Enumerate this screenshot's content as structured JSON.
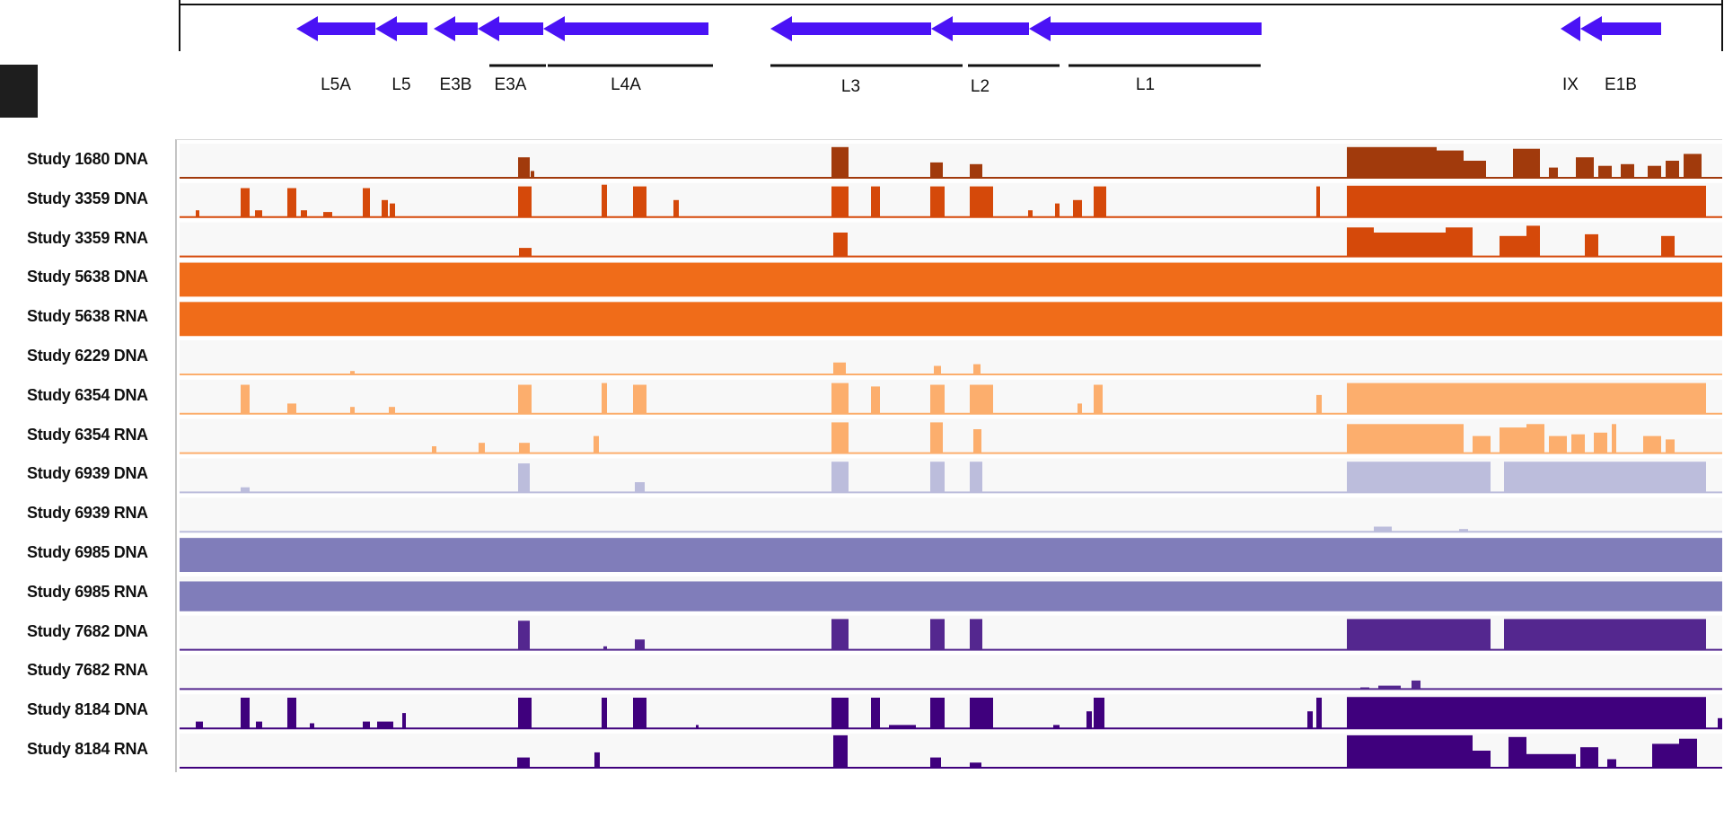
{
  "gene_track": {
    "genes": [
      {
        "name": "L5A",
        "start": 330,
        "end": 418
      },
      {
        "name": "L5",
        "start": 418,
        "end": 476
      },
      {
        "name": "E3B",
        "start": 483,
        "end": 532
      },
      {
        "name": "E3A",
        "start": 532,
        "end": 605
      },
      {
        "name": "L4A",
        "start": 605,
        "end": 789
      },
      {
        "name": "L3",
        "start": 858,
        "end": 1037
      },
      {
        "name": "L2",
        "start": 1037,
        "end": 1146
      },
      {
        "name": "L1",
        "start": 1146,
        "end": 1405
      },
      {
        "name": "IX",
        "start": 1738,
        "end": 1760
      },
      {
        "name": "E1B",
        "start": 1760,
        "end": 1850
      }
    ],
    "regions": [
      {
        "start": 545,
        "end": 608
      },
      {
        "start": 610,
        "end": 794
      },
      {
        "start": 858,
        "end": 1072
      },
      {
        "start": 1078,
        "end": 1180
      },
      {
        "start": 1190,
        "end": 1404
      }
    ],
    "color": "#4a12f5"
  },
  "chart_data": {
    "type": "area",
    "x_range": [
      200,
      1918
    ],
    "tracks": [
      {
        "label": "Study 1680 DNA",
        "color": "#a13a0c",
        "level": 0.0,
        "peaks": [
          [
            577,
            590,
            0.6
          ],
          [
            591,
            595,
            0.2
          ],
          [
            926,
            945,
            0.9
          ],
          [
            1036,
            1050,
            0.45
          ],
          [
            1080,
            1094,
            0.4
          ],
          [
            1500,
            1520,
            0.9
          ],
          [
            1520,
            1600,
            0.9
          ],
          [
            1600,
            1630,
            0.8
          ],
          [
            1630,
            1655,
            0.5
          ],
          [
            1685,
            1715,
            0.85
          ],
          [
            1725,
            1735,
            0.3
          ],
          [
            1755,
            1775,
            0.6
          ],
          [
            1780,
            1795,
            0.35
          ],
          [
            1805,
            1820,
            0.4
          ],
          [
            1835,
            1850,
            0.35
          ],
          [
            1855,
            1870,
            0.5
          ],
          [
            1875,
            1895,
            0.7
          ]
        ]
      },
      {
        "label": "Study 3359 DNA",
        "color": "#d5490a",
        "level": 0.0,
        "peaks": [
          [
            218,
            222,
            0.2
          ],
          [
            268,
            278,
            0.85
          ],
          [
            284,
            292,
            0.2
          ],
          [
            320,
            330,
            0.85
          ],
          [
            335,
            342,
            0.2
          ],
          [
            360,
            370,
            0.15
          ],
          [
            404,
            412,
            0.85
          ],
          [
            425,
            432,
            0.5
          ],
          [
            434,
            440,
            0.4
          ],
          [
            577,
            592,
            0.9
          ],
          [
            670,
            676,
            0.95
          ],
          [
            705,
            720,
            0.9
          ],
          [
            750,
            756,
            0.5
          ],
          [
            926,
            945,
            0.9
          ],
          [
            970,
            980,
            0.9
          ],
          [
            1036,
            1052,
            0.9
          ],
          [
            1080,
            1106,
            0.9
          ],
          [
            1145,
            1150,
            0.2
          ],
          [
            1175,
            1180,
            0.4
          ],
          [
            1195,
            1205,
            0.5
          ],
          [
            1218,
            1232,
            0.9
          ],
          [
            1466,
            1470,
            0.9
          ],
          [
            1500,
            1900,
            0.92
          ]
        ]
      },
      {
        "label": "Study 3359 RNA",
        "color": "#d5490a",
        "level": 0.0,
        "peaks": [
          [
            578,
            592,
            0.25
          ],
          [
            928,
            944,
            0.7
          ],
          [
            1500,
            1530,
            0.85
          ],
          [
            1530,
            1610,
            0.7
          ],
          [
            1610,
            1640,
            0.85
          ],
          [
            1670,
            1700,
            0.6
          ],
          [
            1700,
            1715,
            0.9
          ],
          [
            1765,
            1780,
            0.65
          ],
          [
            1850,
            1865,
            0.6
          ]
        ]
      },
      {
        "label": "Study 5638 DNA",
        "color": "#f06c19",
        "level": 0.97,
        "peaks": []
      },
      {
        "label": "Study 5638 RNA",
        "color": "#f06c19",
        "level": 0.97,
        "peaks": []
      },
      {
        "label": "Study 6229 DNA",
        "color": "#fcae6d",
        "level": 0.0,
        "peaks": [
          [
            390,
            395,
            0.1
          ],
          [
            928,
            942,
            0.35
          ],
          [
            1040,
            1048,
            0.25
          ],
          [
            1084,
            1092,
            0.3
          ]
        ]
      },
      {
        "label": "Study 6354 DNA",
        "color": "#fcae6d",
        "level": 0.0,
        "peaks": [
          [
            268,
            278,
            0.85
          ],
          [
            320,
            330,
            0.3
          ],
          [
            390,
            395,
            0.2
          ],
          [
            433,
            440,
            0.2
          ],
          [
            577,
            592,
            0.85
          ],
          [
            670,
            676,
            0.9
          ],
          [
            705,
            720,
            0.85
          ],
          [
            926,
            945,
            0.9
          ],
          [
            970,
            980,
            0.8
          ],
          [
            1036,
            1052,
            0.85
          ],
          [
            1080,
            1106,
            0.85
          ],
          [
            1200,
            1205,
            0.3
          ],
          [
            1218,
            1228,
            0.85
          ],
          [
            1466,
            1472,
            0.55
          ],
          [
            1500,
            1900,
            0.9
          ]
        ]
      },
      {
        "label": "Study 6354 RNA",
        "color": "#fcae6d",
        "level": 0.0,
        "peaks": [
          [
            481,
            486,
            0.2
          ],
          [
            533,
            540,
            0.3
          ],
          [
            578,
            590,
            0.3
          ],
          [
            661,
            667,
            0.5
          ],
          [
            926,
            945,
            0.9
          ],
          [
            1036,
            1050,
            0.9
          ],
          [
            1084,
            1093,
            0.7
          ],
          [
            1500,
            1600,
            0.85
          ],
          [
            1600,
            1630,
            0.85
          ],
          [
            1640,
            1660,
            0.5
          ],
          [
            1670,
            1700,
            0.75
          ],
          [
            1700,
            1720,
            0.85
          ],
          [
            1725,
            1745,
            0.5
          ],
          [
            1750,
            1765,
            0.55
          ],
          [
            1775,
            1790,
            0.6
          ],
          [
            1795,
            1800,
            0.85
          ],
          [
            1830,
            1850,
            0.5
          ],
          [
            1855,
            1865,
            0.4
          ]
        ]
      },
      {
        "label": "Study 6939 DNA",
        "color": "#bcbddc",
        "level": 0.0,
        "peaks": [
          [
            268,
            278,
            0.15
          ],
          [
            577,
            590,
            0.85
          ],
          [
            707,
            718,
            0.3
          ],
          [
            926,
            945,
            0.9
          ],
          [
            1036,
            1052,
            0.9
          ],
          [
            1080,
            1094,
            0.9
          ],
          [
            1500,
            1660,
            0.9
          ],
          [
            1675,
            1900,
            0.9
          ]
        ]
      },
      {
        "label": "Study 6939 RNA",
        "color": "#bcbddc",
        "level": 0.0,
        "peaks": [
          [
            1530,
            1550,
            0.15
          ],
          [
            1625,
            1635,
            0.08
          ]
        ]
      },
      {
        "label": "Study 6985 DNA",
        "color": "#807dba",
        "level": 0.97,
        "peaks": []
      },
      {
        "label": "Study 6985 RNA",
        "color": "#807dba",
        "level": 0.85,
        "peaks": []
      },
      {
        "label": "Study 7682 DNA",
        "color": "#54278f",
        "level": 0.0,
        "peaks": [
          [
            577,
            590,
            0.85
          ],
          [
            672,
            676,
            0.1
          ],
          [
            707,
            718,
            0.3
          ],
          [
            926,
            945,
            0.9
          ],
          [
            1036,
            1052,
            0.9
          ],
          [
            1080,
            1094,
            0.9
          ],
          [
            1500,
            1660,
            0.9
          ],
          [
            1675,
            1900,
            0.9
          ]
        ]
      },
      {
        "label": "Study 7682 RNA",
        "color": "#54278f",
        "level": 0.0,
        "peaks": [
          [
            1515,
            1525,
            0.05
          ],
          [
            1535,
            1560,
            0.1
          ],
          [
            1572,
            1582,
            0.25
          ]
        ]
      },
      {
        "label": "Study 8184 DNA",
        "color": "#3f007d",
        "level": 0.0,
        "peaks": [
          [
            218,
            226,
            0.2
          ],
          [
            268,
            278,
            0.9
          ],
          [
            285,
            292,
            0.2
          ],
          [
            320,
            330,
            0.9
          ],
          [
            345,
            350,
            0.15
          ],
          [
            404,
            412,
            0.2
          ],
          [
            420,
            438,
            0.2
          ],
          [
            448,
            452,
            0.45
          ],
          [
            577,
            592,
            0.9
          ],
          [
            670,
            676,
            0.9
          ],
          [
            705,
            720,
            0.9
          ],
          [
            775,
            778,
            0.1
          ],
          [
            926,
            945,
            0.9
          ],
          [
            970,
            980,
            0.9
          ],
          [
            990,
            1020,
            0.1
          ],
          [
            1036,
            1052,
            0.9
          ],
          [
            1080,
            1106,
            0.9
          ],
          [
            1173,
            1180,
            0.1
          ],
          [
            1210,
            1216,
            0.5
          ],
          [
            1218,
            1230,
            0.9
          ],
          [
            1456,
            1462,
            0.5
          ],
          [
            1466,
            1472,
            0.9
          ],
          [
            1500,
            1900,
            0.92
          ],
          [
            1913,
            1918,
            0.3
          ]
        ]
      },
      {
        "label": "Study 8184 RNA",
        "color": "#3f007d",
        "level": 0.0,
        "peaks": [
          [
            576,
            590,
            0.3
          ],
          [
            662,
            668,
            0.45
          ],
          [
            928,
            944,
            0.95
          ],
          [
            1036,
            1048,
            0.3
          ],
          [
            1080,
            1093,
            0.15
          ],
          [
            1500,
            1640,
            0.95
          ],
          [
            1640,
            1660,
            0.5
          ],
          [
            1680,
            1700,
            0.9
          ],
          [
            1700,
            1755,
            0.4
          ],
          [
            1760,
            1780,
            0.6
          ],
          [
            1790,
            1800,
            0.25
          ],
          [
            1840,
            1870,
            0.7
          ],
          [
            1870,
            1890,
            0.85
          ]
        ]
      }
    ]
  }
}
